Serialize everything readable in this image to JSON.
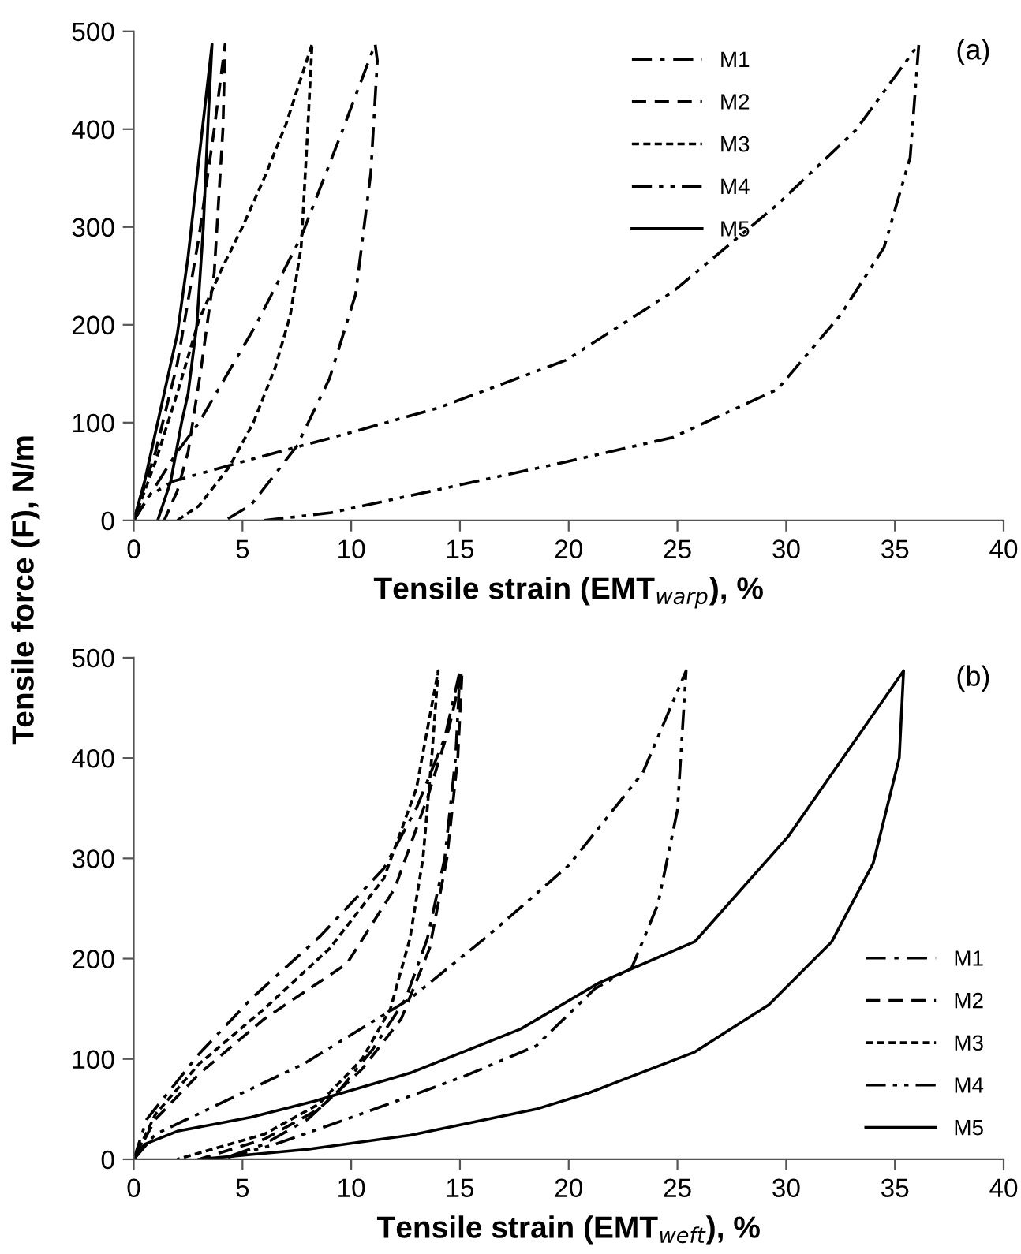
{
  "chart_data": [
    {
      "type": "line",
      "xlabel": "Tensile strain (EMT$_{warp}$), %",
      "ylabel": "Tensile force (F), N/m",
      "annotations": [
        "(a)"
      ],
      "xlim": [
        0,
        40
      ],
      "xticks": [
        0,
        5,
        10,
        15,
        20,
        25,
        30,
        35,
        40
      ],
      "ylim": [
        0,
        500
      ],
      "yticks": [
        0,
        100,
        200,
        300,
        400,
        500
      ],
      "grid": false,
      "legend": "top",
      "series": [
        {
          "name": "M1",
          "color": "#000000",
          "line_style": "dashdot",
          "x": [
            0,
            1,
            2,
            3,
            5.6,
            7.7,
            9.5,
            11.1,
            11.2,
            10.9,
            10.2,
            9.0,
            7.5,
            5.4,
            4.2
          ],
          "values": [
            0,
            35,
            70,
            100,
            199,
            290,
            393,
            487,
            470,
            355,
            231,
            145,
            76,
            16,
            0
          ]
        },
        {
          "name": "M2",
          "color": "#000000",
          "line_style": "dashed",
          "x": [
            0,
            1,
            2,
            3,
            3.7,
            4.2,
            4.1,
            3.7,
            3.1,
            2.5,
            2.0,
            1.4
          ],
          "values": [
            0,
            70,
            160,
            290,
            400,
            487,
            400,
            253,
            156,
            70,
            30,
            0
          ]
        },
        {
          "name": "M3",
          "color": "#000000",
          "line_style": "dotted",
          "x": [
            0,
            1,
            2,
            3,
            4,
            5,
            6,
            7,
            8.2,
            8,
            7.7,
            7.2,
            6.5,
            5.5,
            4.4,
            3,
            2
          ],
          "values": [
            0,
            60,
            130,
            205,
            255,
            300,
            350,
            405,
            487,
            400,
            280,
            210,
            156,
            100,
            55,
            15,
            0
          ]
        },
        {
          "name": "M4",
          "color": "#000000",
          "line_style": "dashdotdot",
          "x": [
            0,
            0.7,
            1.8,
            5,
            10,
            14,
            19.9,
            24.8,
            29.6,
            33.2,
            36.1,
            35.7,
            34.5,
            32.5,
            29.6,
            24.8,
            19.9,
            14.1,
            9.1,
            6
          ],
          "values": [
            0,
            25,
            40,
            60,
            90,
            115,
            164,
            234,
            323,
            399,
            487,
            371,
            279,
            210,
            134,
            85,
            60,
            32,
            8,
            0
          ]
        },
        {
          "name": "M5",
          "color": "#000000",
          "line_style": "solid",
          "x": [
            0,
            0.5,
            1,
            1.5,
            2,
            2.5,
            3,
            3.6,
            3.4,
            3.2,
            2.9,
            2.5,
            2.2,
            1.7,
            1.1
          ],
          "values": [
            0,
            40,
            90,
            140,
            190,
            270,
            370,
            487,
            400,
            300,
            200,
            130,
            100,
            40,
            0
          ]
        }
      ]
    },
    {
      "type": "line",
      "xlabel": "Tensile strain (EMT$_{weft}$), %",
      "annotations": [
        "(b)"
      ],
      "xlim": [
        0,
        40
      ],
      "xticks": [
        0,
        5,
        10,
        15,
        20,
        25,
        30,
        35,
        40
      ],
      "ylim": [
        0,
        500
      ],
      "yticks": [
        0,
        100,
        200,
        300,
        400,
        500
      ],
      "grid": false,
      "legend": "bottom right",
      "series": [
        {
          "name": "M1",
          "color": "#000000",
          "line_style": "dashdot",
          "x": [
            0,
            0.6,
            3,
            5.4,
            8.6,
            11.5,
            13,
            14.3,
            15,
            14.8,
            14.3,
            13.5,
            12.5,
            11,
            9.5,
            8,
            6,
            4
          ],
          "values": [
            0,
            40,
            105,
            160,
            223,
            290,
            350,
            420,
            487,
            400,
            300,
            220,
            160,
            110,
            70,
            40,
            15,
            0
          ]
        },
        {
          "name": "M2",
          "color": "#000000",
          "line_style": "dashed",
          "x": [
            0,
            1,
            3,
            6,
            9.8,
            12,
            13.5,
            14.5,
            15.1,
            14.9,
            14.4,
            13.6,
            12.3,
            10.5,
            8.5,
            6,
            3
          ],
          "values": [
            0,
            40,
            85,
            140,
            195,
            270,
            360,
            430,
            487,
            400,
            300,
            210,
            140,
            90,
            50,
            20,
            0
          ]
        },
        {
          "name": "M3",
          "color": "#000000",
          "line_style": "dotted",
          "x": [
            0,
            1,
            3,
            6,
            9,
            11.5,
            13,
            14,
            13.7,
            13.3,
            12.7,
            11.8,
            10.5,
            8.5,
            6,
            2
          ],
          "values": [
            0,
            45,
            95,
            150,
            210,
            280,
            370,
            487,
            400,
            300,
            220,
            150,
            100,
            55,
            25,
            0
          ]
        },
        {
          "name": "M4",
          "color": "#000000",
          "line_style": "dashdotdot",
          "x": [
            0,
            1,
            4.2,
            7.8,
            12.7,
            16.3,
            20,
            23.4,
            25.4,
            25,
            24.1,
            22.9,
            21.2,
            18.5,
            15.1,
            10.3,
            6.5,
            4
          ],
          "values": [
            0,
            25,
            58,
            95,
            160,
            223,
            293,
            385,
            487,
            348,
            254,
            191,
            170,
            113,
            82,
            44,
            15,
            0
          ]
        },
        {
          "name": "M5",
          "color": "#000000",
          "line_style": "solid",
          "x": [
            0,
            0.5,
            2,
            5.4,
            8.3,
            12.7,
            17.8,
            21.4,
            25.8,
            30.1,
            35.4,
            35.2,
            34,
            32.1,
            29.2,
            25.8,
            20.9,
            18.5,
            12.7,
            8,
            3
          ],
          "values": [
            0,
            15,
            28,
            42,
            58,
            86,
            130,
            176,
            217,
            322,
            487,
            400,
            295,
            217,
            154,
            107,
            66,
            50,
            24,
            10,
            0
          ]
        }
      ]
    }
  ]
}
